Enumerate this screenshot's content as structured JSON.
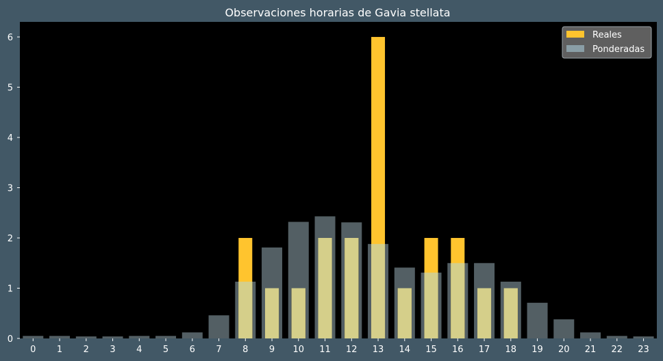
{
  "chart_data": {
    "type": "bar",
    "title": "Observaciones horarias de Gavia stellata",
    "xlabel": "",
    "ylabel": "",
    "categories": [
      "0",
      "1",
      "2",
      "3",
      "4",
      "5",
      "6",
      "7",
      "8",
      "9",
      "10",
      "11",
      "12",
      "13",
      "14",
      "15",
      "16",
      "17",
      "18",
      "19",
      "20",
      "21",
      "22",
      "23"
    ],
    "yticks": [
      "0",
      "1",
      "2",
      "3",
      "4",
      "5",
      "6"
    ],
    "ylim": [
      0,
      6.3
    ],
    "series": [
      {
        "name": "Reales",
        "color": "#ffc42e",
        "values": [
          0,
          0,
          0,
          0,
          0,
          0,
          0,
          0,
          2,
          1,
          1,
          2,
          2,
          6,
          1,
          2,
          2,
          1,
          1,
          0,
          0,
          0,
          0,
          0
        ]
      },
      {
        "name": "Ponderadas",
        "color": "#8a9ea6",
        "values": [
          0.05,
          0.05,
          0.04,
          0.04,
          0.05,
          0.05,
          0.12,
          0.46,
          1.13,
          1.81,
          2.32,
          2.43,
          2.31,
          1.88,
          1.41,
          1.31,
          1.5,
          1.5,
          1.13,
          0.71,
          0.38,
          0.12,
          0.05,
          0.04
        ]
      }
    ],
    "legend_position": "top-right",
    "colors": {
      "figure_background": "#425866",
      "plot_background": "#000000",
      "text": "#ffffff",
      "weighted_bar": "#8a9ea6",
      "real_bar": "#ffc42e",
      "overlap_bar": "#d5cf8a"
    }
  }
}
